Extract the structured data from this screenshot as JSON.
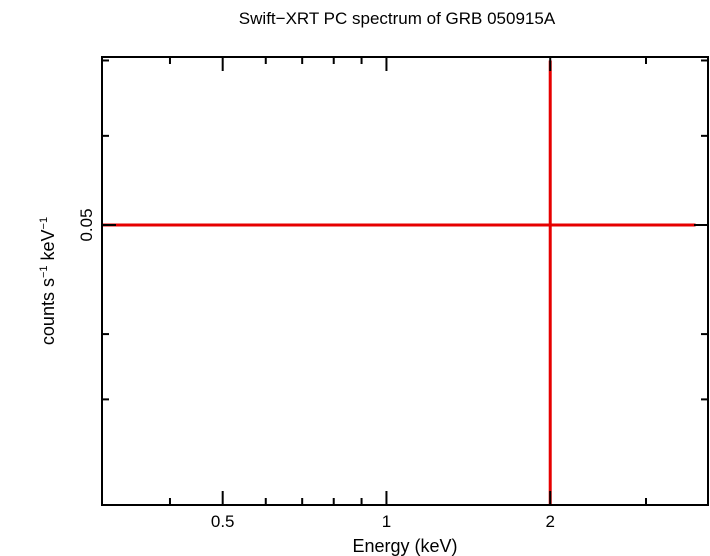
{
  "chart_data": {
    "type": "scatter",
    "title": "Swift−XRT PC spectrum of GRB 050915A",
    "xlabel": "Energy (keV)",
    "ylabel": {
      "base": "counts s",
      "exp1": "−1",
      "mid": " keV",
      "exp2": "−1"
    },
    "x_scale": "log",
    "y_scale": "log",
    "xlim": [
      0.3,
      3.9
    ],
    "ylim": [
      0.0282,
      0.0705
    ],
    "x_ticks": [
      {
        "value": 0.5,
        "label": "0.5"
      },
      {
        "value": 1,
        "label": "1"
      },
      {
        "value": 2,
        "label": "2"
      }
    ],
    "x_minor_ticks": [
      0.4,
      0.6,
      0.7,
      0.8,
      0.9,
      3
    ],
    "y_ticks": [
      {
        "value": 0.05,
        "label": "0.05"
      }
    ],
    "y_minor_ticks": [
      0.035,
      0.04,
      0.06,
      0.07
    ],
    "series": [
      {
        "color": "#e60000",
        "points": [
          {
            "x": 2.0,
            "y": 0.05,
            "x_err": [
              1.7,
              1.7
            ],
            "y_err": [
              0.022,
              0.02
            ]
          }
        ]
      }
    ],
    "grid": false
  }
}
